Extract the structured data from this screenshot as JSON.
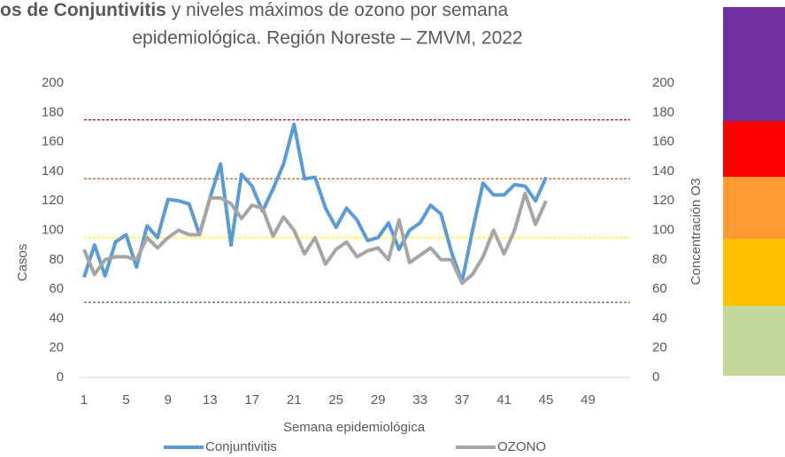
{
  "chart_data": {
    "type": "line",
    "title": [
      "os de Conjuntivitis",
      "y niveles máximos de ozono por semana",
      "epidemiológica. Región Noreste – ZMVM, 2022"
    ],
    "xlabel": "Semana epidemiológica",
    "ylabel": "Casos",
    "y2label": "Concentración O3",
    "x": [
      1,
      2,
      3,
      4,
      5,
      6,
      7,
      8,
      9,
      10,
      11,
      12,
      13,
      14,
      15,
      16,
      17,
      18,
      19,
      20,
      21,
      22,
      23,
      24,
      25,
      26,
      27,
      28,
      29,
      30,
      31,
      32,
      33,
      34,
      35,
      36,
      37,
      38,
      39,
      40,
      41,
      42,
      43,
      44,
      45
    ],
    "xlim": [
      0.5,
      52.5
    ],
    "xticks": [
      1,
      5,
      9,
      13,
      17,
      21,
      25,
      29,
      33,
      37,
      41,
      45,
      49
    ],
    "ylim": [
      0,
      200
    ],
    "yticks": [
      0,
      20,
      40,
      60,
      80,
      100,
      120,
      140,
      160,
      180,
      200
    ],
    "y2lim": [
      0,
      200
    ],
    "y2ticks": [
      0,
      20,
      40,
      60,
      80,
      100,
      120,
      140,
      160,
      180,
      200
    ],
    "series": [
      {
        "name": "Conjuntivitis",
        "color": "#5b9bd5",
        "values": [
          68,
          90,
          69,
          92,
          97,
          75,
          103,
          95,
          121,
          120,
          118,
          97,
          122,
          145,
          90,
          138,
          130,
          113,
          128,
          145,
          172,
          135,
          136,
          115,
          102,
          115,
          107,
          93,
          95,
          105,
          87,
          100,
          105,
          117,
          111,
          85,
          65,
          100,
          132,
          124,
          124,
          131,
          130,
          120,
          136
        ]
      },
      {
        "name": "OZONO",
        "color": "#a5a5a5",
        "axis": "y2",
        "values": [
          87,
          70,
          80,
          82,
          82,
          80,
          95,
          88,
          95,
          100,
          97,
          97,
          122,
          122,
          118,
          108,
          117,
          115,
          96,
          109,
          100,
          84,
          95,
          77,
          87,
          92,
          82,
          86,
          88,
          80,
          107,
          78,
          83,
          88,
          80,
          80,
          64,
          70,
          82,
          100,
          84,
          100,
          125,
          104,
          120
        ]
      }
    ],
    "reference_lines": [
      {
        "value": 175,
        "color": "#c00000"
      },
      {
        "value": 135,
        "color": "#c55a11"
      },
      {
        "value": 95,
        "color": "#ffff00"
      },
      {
        "value": 51,
        "color": "#548235"
      }
    ],
    "grid": false
  }
}
